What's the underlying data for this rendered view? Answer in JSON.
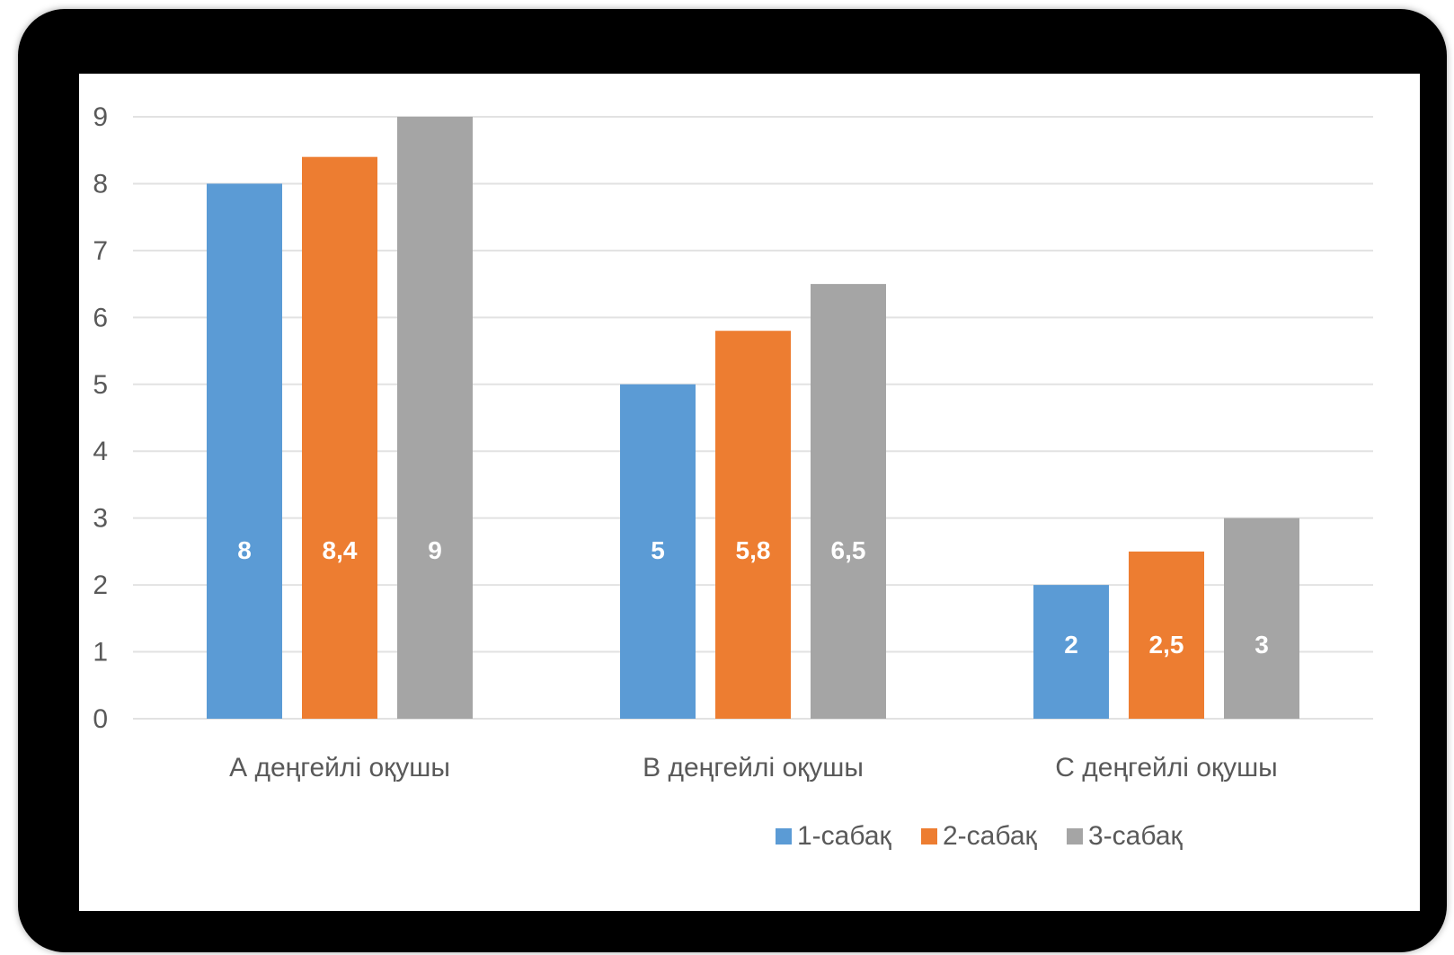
{
  "chart_data": {
    "type": "bar",
    "title": "",
    "xlabel": "",
    "ylabel": "",
    "ylim": [
      0,
      9
    ],
    "yticks": [
      0,
      1,
      2,
      3,
      4,
      5,
      6,
      7,
      8,
      9
    ],
    "grid": true,
    "legend_position": "bottom-right",
    "categories": [
      "А деңгейлі оқушы",
      "В деңгейлі оқушы",
      "С деңгейлі оқушы"
    ],
    "series": [
      {
        "name": "1-сабақ",
        "color": "#5B9BD5",
        "values": [
          8,
          5,
          2
        ],
        "labels": [
          "8",
          "5",
          "2"
        ]
      },
      {
        "name": "2-сабақ",
        "color": "#ED7D31",
        "values": [
          8.4,
          5.8,
          2.5
        ],
        "labels": [
          "8,4",
          "5,8",
          "2,5"
        ]
      },
      {
        "name": "3-сабақ",
        "color": "#A5A5A5",
        "values": [
          9,
          6.5,
          3
        ],
        "labels": [
          "9",
          "6,5",
          "3"
        ]
      }
    ]
  }
}
